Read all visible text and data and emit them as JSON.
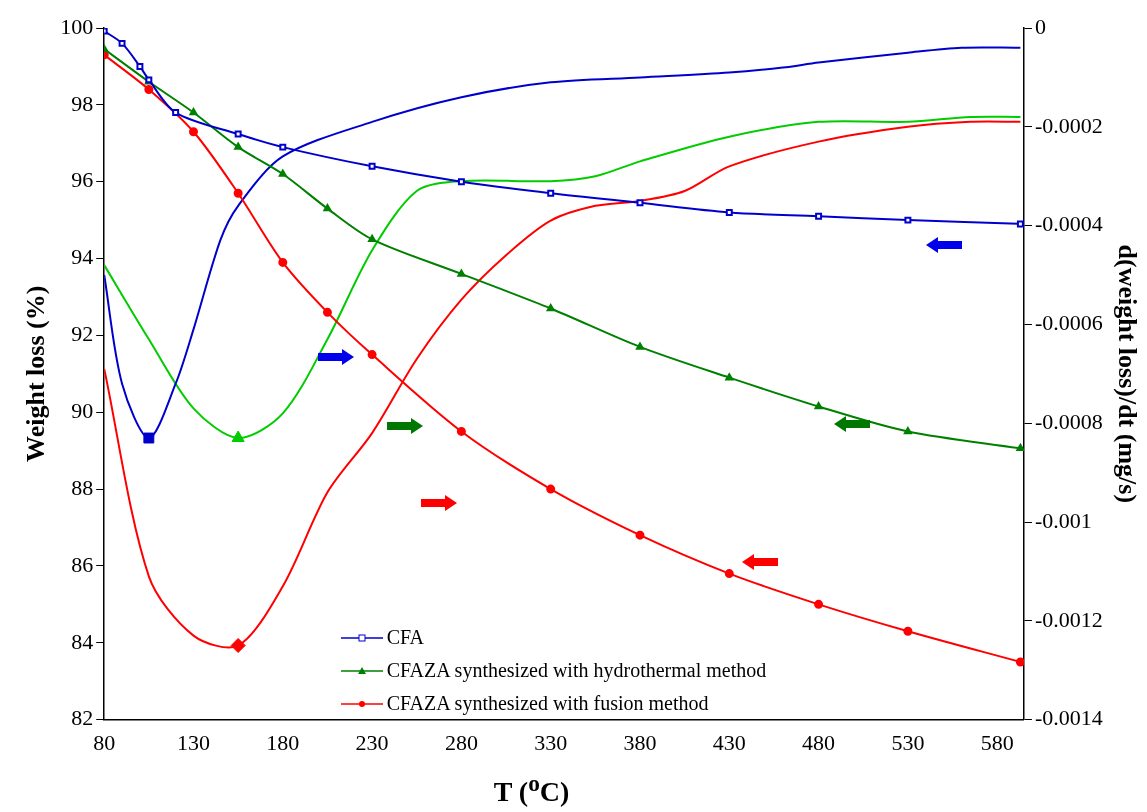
{
  "chart_data": {
    "type": "line",
    "xlabel": "T ($^{o}$C)",
    "ylabel": "Weight loss (%)",
    "y2label": "d(weight loss)/dt (mg/s)",
    "xlim": [
      80,
      595
    ],
    "xticks": [
      80,
      130,
      180,
      230,
      280,
      330,
      380,
      430,
      480,
      530,
      580
    ],
    "ylim": [
      82,
      100
    ],
    "yticks": [
      82,
      84,
      86,
      88,
      90,
      92,
      94,
      96,
      98,
      100
    ],
    "y2lim": [
      -0.0014,
      0
    ],
    "y2ticks": [
      -0.0014,
      -0.0012,
      -0.001,
      -0.0008,
      -0.0006,
      -0.0004,
      -0.0002,
      0
    ],
    "grid": false,
    "legend": "bottom",
    "line_style": "solid",
    "series": [
      {
        "name": "CFA",
        "color": "#0000cc",
        "marker": "square",
        "x": [
          80,
          90,
          100,
          105,
          120,
          155,
          180,
          230,
          280,
          330,
          380,
          430,
          480,
          530,
          593
        ],
        "values": [
          99.92,
          99.6,
          99.0,
          98.65,
          97.8,
          97.24,
          96.9,
          96.4,
          96.0,
          95.7,
          95.45,
          95.2,
          95.1,
          95.0,
          94.9
        ]
      },
      {
        "name": "CFAZA synthesized with hydrothermal method",
        "color": "#008000",
        "marker": "triangle",
        "x": [
          80,
          105,
          130,
          155,
          180,
          205,
          230,
          280,
          330,
          380,
          430,
          480,
          530,
          593
        ],
        "values": [
          99.45,
          98.6,
          97.8,
          96.9,
          96.2,
          95.3,
          94.5,
          93.6,
          92.7,
          91.7,
          90.9,
          90.15,
          89.5,
          89.06
        ]
      },
      {
        "name": "CFAZA synthesized with fusion method",
        "color": "#ff0000",
        "marker": "circle",
        "x": [
          80,
          105,
          130,
          155,
          180,
          205,
          230,
          280,
          330,
          380,
          430,
          480,
          530,
          593
        ],
        "values": [
          99.3,
          98.4,
          97.3,
          95.7,
          93.9,
          92.6,
          91.5,
          89.5,
          88.0,
          86.8,
          85.8,
          85.0,
          84.3,
          83.5
        ]
      },
      {
        "color": "#0000cc",
        "axis": "y2",
        "marker": "none",
        "x": [
          80,
          90,
          105,
          120,
          130,
          145,
          155,
          180,
          230,
          280,
          330,
          380,
          430,
          460,
          480,
          530,
          560,
          593
        ],
        "values": [
          -0.0005,
          -0.00072,
          -0.00083,
          -0.00072,
          -0.00061,
          -0.00043,
          -0.00036,
          -0.00026,
          -0.00019,
          -0.00014,
          -0.00011,
          -0.0001,
          -9e-05,
          -8e-05,
          -7e-05,
          -5e-05,
          -4e-05,
          -4e-05
        ]
      },
      {
        "color": "#00cc00",
        "axis": "y2",
        "marker": "none",
        "x": [
          80,
          105,
          130,
          155,
          180,
          205,
          230,
          255,
          280,
          330,
          355,
          380,
          430,
          480,
          530,
          565,
          593
        ],
        "values": [
          -0.00048,
          -0.00063,
          -0.00077,
          -0.00083,
          -0.00078,
          -0.00063,
          -0.00045,
          -0.00033,
          -0.00031,
          -0.00031,
          -0.0003,
          -0.00027,
          -0.00022,
          -0.00019,
          -0.00019,
          -0.00018,
          -0.00018
        ]
      },
      {
        "color": "#ff0000",
        "axis": "y2",
        "marker": "none",
        "x": [
          80,
          105,
          130,
          155,
          180,
          205,
          230,
          255,
          280,
          305,
          330,
          355,
          380,
          405,
          430,
          480,
          530,
          565,
          593
        ],
        "values": [
          -0.00069,
          -0.00111,
          -0.00123,
          -0.00125,
          -0.00113,
          -0.00094,
          -0.00082,
          -0.00067,
          -0.00055,
          -0.00046,
          -0.00039,
          -0.00036,
          -0.00035,
          -0.00033,
          -0.00028,
          -0.00023,
          -0.0002,
          -0.00019,
          -0.00019
        ]
      },
      {
        "type": "scatter",
        "color": "#0000cc",
        "axis": "y2",
        "marker": "square",
        "x": [
          105
        ],
        "values": [
          -0.00083
        ]
      },
      {
        "type": "scatter",
        "color": "#00cc00",
        "axis": "y2",
        "marker": "triangle",
        "x": [
          155
        ],
        "values": [
          -0.00083
        ]
      },
      {
        "type": "scatter",
        "color": "#ff0000",
        "axis": "y2",
        "marker": "diamond",
        "x": [
          155
        ],
        "values": [
          -0.00125
        ]
      }
    ]
  }
}
